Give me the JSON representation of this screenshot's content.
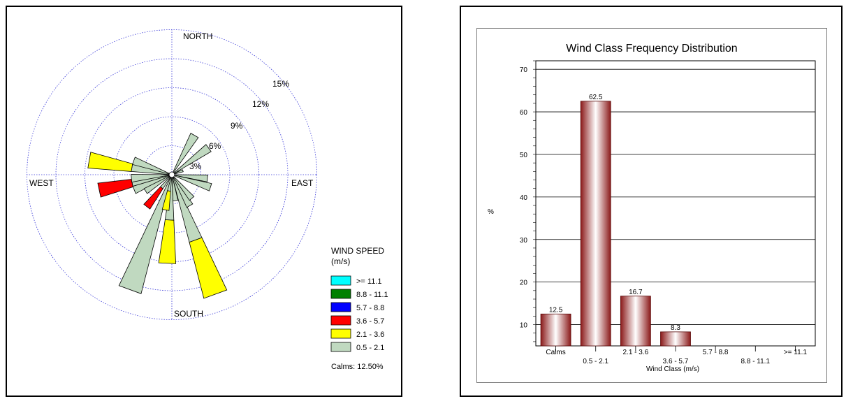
{
  "chart_data": [
    {
      "type": "wind-rose",
      "directions": {
        "north": "NORTH",
        "south": "SOUTH",
        "east": "EAST",
        "west": "WEST"
      },
      "ring_labels": [
        "3%",
        "6%",
        "9%",
        "12%",
        "15%"
      ],
      "legend": {
        "title": "WIND SPEED",
        "unit": "(m/s)",
        "classes": [
          {
            "label": ">= 11.1",
            "color": "#00ffff"
          },
          {
            "label": "8.8 - 11.1",
            "color": "#008000"
          },
          {
            "label": "5.7 -  8.8",
            "color": "#0000ff"
          },
          {
            "label": "3.6 -  5.7",
            "color": "#ff0000"
          },
          {
            "label": "2.1 -  3.6",
            "color": "#ffff00"
          },
          {
            "label": "0.5 -  2.1",
            "color": "#c0d9c0"
          }
        ],
        "calms": "Calms: 12.50%"
      },
      "ring_step_percent": 3,
      "sector_width_deg": 22.5,
      "petals": [
        {
          "dir_deg": 22.5,
          "bands": [
            5.0
          ]
        },
        {
          "dir_deg": 45,
          "bands": [
            5.0
          ]
        },
        {
          "dir_deg": 67.5,
          "bands": [
            1.0
          ]
        },
        {
          "dir_deg": 90,
          "bands": [
            1.0
          ]
        },
        {
          "dir_deg": 112.5,
          "bands": [
            5.0
          ]
        },
        {
          "dir_deg": 135,
          "bands": [
            2.5
          ]
        },
        {
          "dir_deg": 157.5,
          "bands": [
            5.0
          ]
        },
        {
          "dir_deg": 180,
          "bands": [
            2.0
          ]
        },
        {
          "dir_deg": 202.5,
          "bands": [
            4.0,
            0.0,
            1.5
          ]
        },
        {
          "dir_deg": 225,
          "bands": [
            1.0
          ]
        },
        {
          "dir_deg": 247.5,
          "bands": [
            5.0,
            0.0,
            3.0
          ]
        },
        {
          "dir_deg": 270,
          "bands": [
            5.0
          ]
        },
        {
          "dir_deg": 292.5,
          "bands": [
            5.0
          ]
        },
        {
          "dir_deg": 337.5,
          "bands": [
            1.0
          ]
        },
        {
          "dir_deg": 202.5,
          "bands": [
            0.0
          ]
        }
      ],
      "main_petals": [
        {
          "dir_deg": 200,
          "bands": [
            12.5
          ]
        },
        {
          "dir_deg": 160,
          "bands": [
            7.0,
            6.0
          ]
        },
        {
          "dir_deg": 183,
          "bands": [
            4.5,
            4.5
          ]
        },
        {
          "dir_deg": 190,
          "bands": [
            1.5,
            2.0
          ]
        },
        {
          "dir_deg": 218,
          "bands": [
            1.5,
            0.0,
            2.5
          ]
        },
        {
          "dir_deg": 258,
          "bands": [
            4.0,
            0.0,
            3.5
          ]
        },
        {
          "dir_deg": 280,
          "bands": [
            4.0,
            4.5
          ]
        },
        {
          "dir_deg": 248,
          "bands": [
            4.0
          ]
        },
        {
          "dir_deg": 238,
          "bands": [
            3.0
          ]
        },
        {
          "dir_deg": 290,
          "bands": [
            4.0
          ]
        },
        {
          "dir_deg": 265,
          "bands": [
            4.0
          ]
        },
        {
          "dir_deg": 150,
          "bands": [
            3.5
          ]
        },
        {
          "dir_deg": 140,
          "bands": [
            3.0
          ]
        },
        {
          "dir_deg": 172,
          "bands": [
            2.5
          ]
        },
        {
          "dir_deg": 108,
          "bands": [
            4.0
          ]
        },
        {
          "dir_deg": 96,
          "bands": [
            3.5
          ]
        },
        {
          "dir_deg": 30,
          "bands": [
            4.5
          ]
        },
        {
          "dir_deg": 54,
          "bands": [
            4.5
          ]
        },
        {
          "dir_deg": 70,
          "bands": [
            1.0
          ]
        }
      ]
    },
    {
      "type": "bar",
      "title": "Wind Class Frequency Distribution",
      "xlabel": "Wind Class (m/s)",
      "ylabel": "%",
      "categories": [
        "Calms",
        "0.5 -  2.1",
        "2.1 -  3.6",
        "3.6 -  5.7",
        "5.7 -  8.8",
        "8.8 - 11.1",
        ">= 11.1"
      ],
      "values": [
        12.5,
        62.5,
        16.7,
        8.3,
        0,
        0,
        0
      ],
      "data_labels": [
        "12.5",
        "62.5",
        "16.7",
        "8.3",
        "",
        "",
        ""
      ],
      "ylim": [
        5,
        72
      ],
      "yticks": [
        10,
        20,
        30,
        40,
        50,
        60,
        70
      ],
      "grid": true,
      "bar_color": "#8b1a1a"
    }
  ]
}
